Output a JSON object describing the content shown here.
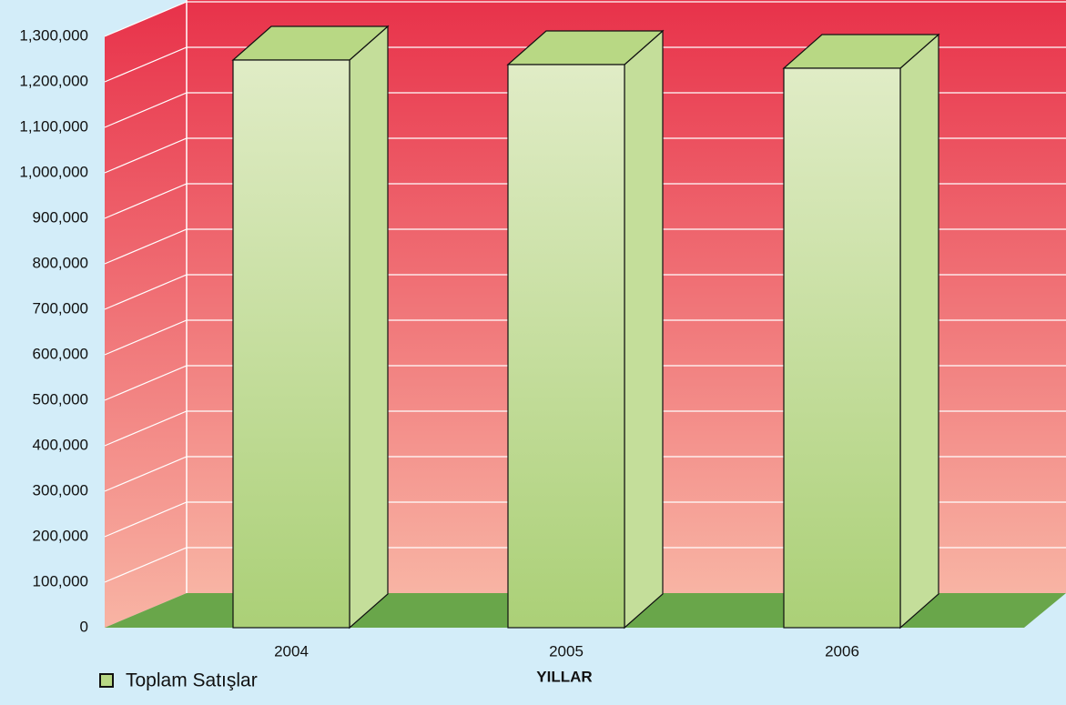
{
  "chart_data": {
    "type": "bar3d",
    "x_label": "YILLAR",
    "categories": [
      "2004",
      "2005",
      "2006"
    ],
    "series": [
      {
        "name": "Toplam Satışlar",
        "color": "#b8d884",
        "values": [
          1248000,
          1238000,
          1230000
        ]
      }
    ],
    "ylim": [
      0,
      1300000
    ],
    "yticks": [
      0,
      {
        "value": 100000,
        "label": "100,000"
      },
      {
        "value": 200000,
        "label": "200,000"
      },
      {
        "value": 300000,
        "label": "300,000"
      },
      {
        "value": 400000,
        "label": "400,000"
      },
      {
        "value": 500000,
        "label": "500,000"
      },
      {
        "value": 600000,
        "label": "600,000"
      },
      {
        "value": 700000,
        "label": "700,000"
      },
      {
        "value": 800000,
        "label": "800,000"
      },
      {
        "value": 900000,
        "label": "900,000"
      },
      {
        "value": 1000000,
        "label": "1,000,000"
      },
      {
        "value": 1100000,
        "label": "1,100,000"
      },
      {
        "value": 1200000,
        "label": "1,200,000"
      },
      {
        "value": 1300000,
        "label": "1,300,000"
      }
    ],
    "grid": true,
    "legend": "bottom-left"
  }
}
